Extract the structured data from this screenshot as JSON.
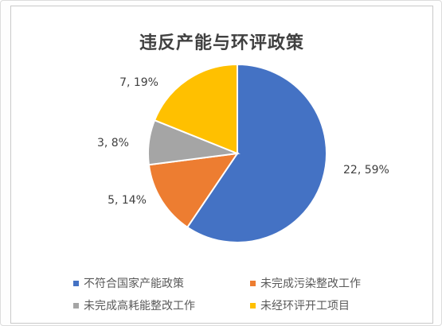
{
  "chart_data": {
    "type": "pie",
    "title": "违反产能与环评政策",
    "categories": [
      "不符合国家产能政策",
      "未完成污染整改工作",
      "未完成高耗能整改工作",
      "未经环评开工项目"
    ],
    "values": [
      22,
      5,
      3,
      7
    ],
    "percent_labels": [
      "59%",
      "14%",
      "8%",
      "19%"
    ],
    "data_labels": [
      "22, 59%",
      "5, 14%",
      "3, 8%",
      "7, 19%"
    ],
    "colors": [
      "#4472C4",
      "#ED7D31",
      "#A5A5A5",
      "#FFC000"
    ],
    "start_angle_deg": 0,
    "direction": "clockwise",
    "legend_position": "bottom"
  }
}
